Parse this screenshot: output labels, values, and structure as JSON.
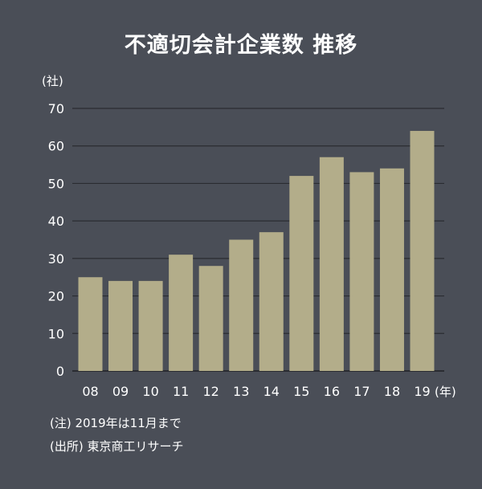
{
  "chart_data": {
    "type": "bar",
    "title": "不適切会計企業数 推移",
    "ylabel": "(社)",
    "xlabel": "(年)",
    "categories": [
      "08",
      "09",
      "10",
      "11",
      "12",
      "13",
      "14",
      "15",
      "16",
      "17",
      "18",
      "19"
    ],
    "values": [
      25,
      24,
      24,
      31,
      28,
      35,
      37,
      52,
      57,
      53,
      54,
      64
    ],
    "ylim": [
      0,
      70
    ],
    "yticks": [
      0,
      10,
      20,
      30,
      40,
      50,
      60,
      70
    ],
    "grid": true,
    "bar_color": "#b3ad8a",
    "grid_color": "#2a2c31"
  },
  "notes": {
    "note1": "(注) 2019年は11月まで",
    "note2": "(出所) 東京商工リサーチ"
  }
}
